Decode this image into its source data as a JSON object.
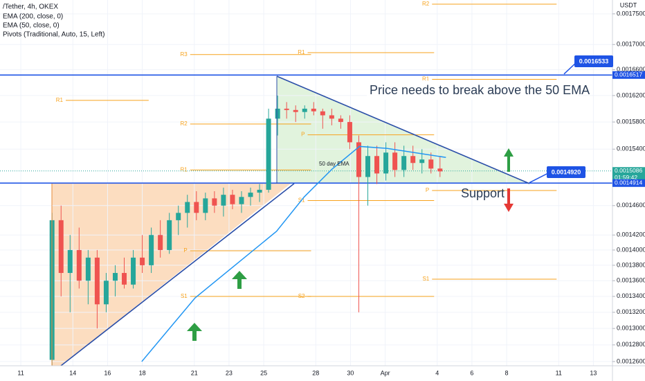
{
  "chart_data": {
    "type": "candlestick",
    "header": [
      "/Tether, 4h, OKEX",
      "EMA (200, close, 0)",
      "EMA (50, close, 0)",
      "Pivots (Traditional, Auto, 15, Left)"
    ],
    "axis_unit": "USDT",
    "log_scale": true,
    "ylim": [
      0.001255,
      0.001773
    ],
    "yticks": [
      {
        "value": 0.00175,
        "label": "0.0017500"
      },
      {
        "value": 0.0017,
        "label": "0.0017000"
      },
      {
        "value": 0.00166,
        "label": "0.0016600"
      },
      {
        "value": 0.00162,
        "label": "0.0016200"
      },
      {
        "value": 0.00158,
        "label": "0.0015800"
      },
      {
        "value": 0.00154,
        "label": "0.0015400"
      },
      {
        "value": 0.00146,
        "label": "0.0014600"
      },
      {
        "value": 0.00142,
        "label": "0.0014200"
      },
      {
        "value": 0.0014,
        "label": "0.0014000"
      },
      {
        "value": 0.00138,
        "label": "0.0013800"
      },
      {
        "value": 0.00136,
        "label": "0.0013600"
      },
      {
        "value": 0.00134,
        "label": "0.0013400"
      },
      {
        "value": 0.00132,
        "label": "0.0013200"
      },
      {
        "value": 0.0013,
        "label": "0.0013000"
      },
      {
        "value": 0.00128,
        "label": "0.0012800"
      },
      {
        "value": 0.00126,
        "label": "0.0012600"
      }
    ],
    "xlim": [
      -1.2,
      34.1
    ],
    "xticks": [
      {
        "value": 0,
        "label": "11"
      },
      {
        "value": 3,
        "label": "14"
      },
      {
        "value": 5,
        "label": "16"
      },
      {
        "value": 7,
        "label": "18"
      },
      {
        "value": 10,
        "label": "21"
      },
      {
        "value": 12,
        "label": "23"
      },
      {
        "value": 14,
        "label": "25"
      },
      {
        "value": 17,
        "label": "28"
      },
      {
        "value": 19,
        "label": "30"
      },
      {
        "value": 21,
        "label": "Apr"
      },
      {
        "value": 24,
        "label": "4"
      },
      {
        "value": 26,
        "label": "6"
      },
      {
        "value": 28,
        "label": "8"
      },
      {
        "value": 31,
        "label": "11"
      },
      {
        "value": 33,
        "label": "13"
      }
    ],
    "up_color": "#26a69a",
    "down_color": "#ef5350",
    "x": [
      1.8,
      2.32,
      2.84,
      3.36,
      3.88,
      4.4,
      4.92,
      5.44,
      5.96,
      6.48,
      7,
      7.52,
      8.04,
      8.56,
      9.08,
      9.6,
      10.12,
      10.64,
      11.16,
      11.68,
      12.2,
      12.72,
      13.24,
      13.76,
      14.28,
      14.8,
      15.32,
      15.84,
      16.36,
      16.88,
      17.4,
      17.92,
      18.44,
      18.96,
      19.48,
      20,
      20.52,
      21.04,
      21.56,
      22.08,
      22.6,
      23.12,
      23.64,
      24.16
    ],
    "open": [
      0.001262,
      0.00144,
      0.00137,
      0.0014,
      0.00136,
      0.00139,
      0.00133,
      0.00136,
      0.00137,
      0.001355,
      0.00139,
      0.00138,
      0.00142,
      0.0014,
      0.00144,
      0.00145,
      0.001465,
      0.00145,
      0.00147,
      0.00146,
      0.001475,
      0.001462,
      0.001472,
      0.001478,
      0.001482,
      0.001585,
      0.0016,
      0.001598,
      0.001595,
      0.0016,
      0.001596,
      0.00159,
      0.001585,
      0.00158,
      0.00155,
      0.0015,
      0.00153,
      0.001505,
      0.001535,
      0.00151,
      0.00153,
      0.00152,
      0.001525,
      0.001512
    ],
    "high": [
      0.00145,
      0.00146,
      0.00142,
      0.00143,
      0.0014,
      0.0014,
      0.00137,
      0.00138,
      0.00139,
      0.0014,
      0.00142,
      0.00143,
      0.00144,
      0.00145,
      0.00146,
      0.001475,
      0.00148,
      0.001478,
      0.00148,
      0.001485,
      0.001482,
      0.00148,
      0.001485,
      0.00149,
      0.0016,
      0.00162,
      0.00161,
      0.001605,
      0.001605,
      0.00161,
      0.0016,
      0.0016,
      0.00159,
      0.00159,
      0.00156,
      0.001545,
      0.001545,
      0.00155,
      0.00155,
      0.001545,
      0.001545,
      0.00154,
      0.001535,
      0.00153
    ],
    "low": [
      0.001255,
      0.00134,
      0.00132,
      0.00135,
      0.00133,
      0.0013,
      0.00132,
      0.00134,
      0.00135,
      0.00135,
      0.00137,
      0.00137,
      0.00139,
      0.001395,
      0.00142,
      0.00143,
      0.00144,
      0.00144,
      0.00145,
      0.001445,
      0.001455,
      0.00145,
      0.00146,
      0.001465,
      0.001478,
      0.00156,
      0.001585,
      0.00158,
      0.001585,
      0.00159,
      0.00157,
      0.001575,
      0.00157,
      0.00154,
      0.00132,
      0.00146,
      0.00149,
      0.001495,
      0.0015,
      0.0015,
      0.00151,
      0.001505,
      0.001505,
      0.0015
    ],
    "close": [
      0.00144,
      0.00137,
      0.0014,
      0.00136,
      0.00139,
      0.00133,
      0.00136,
      0.00137,
      0.001355,
      0.00139,
      0.00138,
      0.00142,
      0.0014,
      0.00144,
      0.00145,
      0.001465,
      0.00145,
      0.00147,
      0.00146,
      0.001475,
      0.001462,
      0.001472,
      0.001478,
      0.001482,
      0.001585,
      0.0016,
      0.001598,
      0.001595,
      0.0016,
      0.001596,
      0.00159,
      0.001585,
      0.00158,
      0.00155,
      0.0015,
      0.00153,
      0.001505,
      0.001535,
      0.00151,
      0.00153,
      0.00152,
      0.001525,
      0.001512,
      0.001508
    ],
    "ema": {
      "color": "#2196f3",
      "x": [
        6.97,
        10.04,
        14.74,
        16.33,
        17.93,
        19.52,
        21.12,
        24.5
      ],
      "values": [
        0.00126,
        0.001338,
        0.001425,
        0.001472,
        0.001511,
        0.001544,
        0.001541,
        0.001528
      ]
    },
    "pivot_color": "#f7a21b",
    "pivots": [
      {
        "label": "R1",
        "value": 0.0016126,
        "x": [
          2.59,
          7.37
        ]
      },
      {
        "label": "R3",
        "value": 0.001684,
        "x": [
          9.76,
          16.73
        ]
      },
      {
        "label": "R2",
        "value": 0.001577,
        "x": [
          9.76,
          16.73
        ]
      },
      {
        "label": "R1",
        "value": 0.00151,
        "x": [
          9.76,
          16.73
        ]
      },
      {
        "label": "P",
        "value": 0.001399,
        "x": [
          9.76,
          16.73
        ]
      },
      {
        "label": "S1",
        "value": 0.00134,
        "x": [
          9.76,
          16.73
        ]
      },
      {
        "label": "R1",
        "value": 0.001687,
        "x": [
          16.53,
          23.82
        ]
      },
      {
        "label": "P",
        "value": 0.001561,
        "x": [
          16.53,
          23.82
        ]
      },
      {
        "label": "S1",
        "value": 0.001467,
        "x": [
          16.53,
          23.82
        ]
      },
      {
        "label": "S2",
        "value": 0.00134,
        "x": [
          16.53,
          23.82
        ]
      },
      {
        "label": "R2",
        "value": 0.001766,
        "x": [
          23.7,
          30.88
        ]
      },
      {
        "label": "R1",
        "value": 0.001645,
        "x": [
          23.7,
          30.88
        ]
      },
      {
        "label": "P",
        "value": 0.001481,
        "x": [
          23.7,
          30.88
        ]
      },
      {
        "label": "S1",
        "value": 0.001362,
        "x": [
          23.7,
          30.88
        ]
      }
    ],
    "callouts": [
      {
        "value": 0.0016533
      },
      {
        "value": 0.001492,
        "label": "0.0014920"
      }
    ],
    "axis_labels": [
      {
        "value": 0.0016517,
        "color": "#1e53e5"
      },
      {
        "value": 0.0015086,
        "color": "#26a69a"
      },
      {
        "value": 0.0014914,
        "color": "#1e53e5"
      }
    ],
    "countdown": "01:59:42",
    "annotations": [
      "Price needs to break above the 50 EMA",
      "Support",
      "50 day EMA"
    ]
  }
}
